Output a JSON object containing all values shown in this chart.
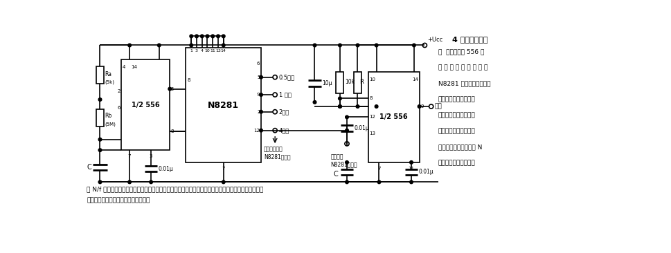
{
  "figsize": [
    9.7,
    3.66
  ],
  "dpi": 100,
  "bg_color": "#ffffff",
  "title": "4 小时顺序定时",
  "right_text": [
    "器  在双定时器 556 的",
    "两 个 定 时 器 之 间 使 用",
    "N8281 分配器网络，不用",
    "大体积低漏电电容器，",
    "可以得到相当长的时间",
    "延迟。第一个定时器构",
    "成振荡器，其输出加到 N",
    "分频网络产生具有周期"
  ],
  "bottom_line1": "为 N/f 的输出，用于触发构成单稳的第二个定时器。延迟时间取决于分配器的延时输出时间。可以级联几",
  "bottom_line2": "个分配器使延迟时间达几天甚至几周。"
}
